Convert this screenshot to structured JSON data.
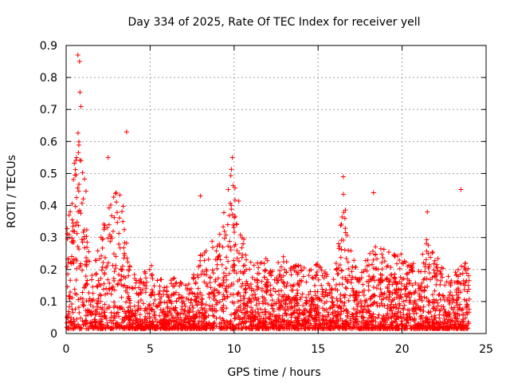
{
  "chart_data": {
    "type": "scatter",
    "title": "Day 334 of 2025, Rate Of TEC Index for receiver yell",
    "xlabel": "GPS time / hours",
    "ylabel": "ROTI / TECUs",
    "xlim": [
      0,
      25
    ],
    "ylim": [
      0,
      0.9
    ],
    "xticks": [
      0,
      5,
      10,
      15,
      20,
      25
    ],
    "yticks": [
      0,
      0.1,
      0.2,
      0.3,
      0.4,
      0.5,
      0.6,
      0.7,
      0.8,
      0.9
    ],
    "xtick_labels": [
      "0",
      "5",
      "10",
      "15",
      "20",
      "25"
    ],
    "ytick_labels": [
      "0",
      "0.1",
      "0.2",
      "0.3",
      "0.4",
      "0.5",
      "0.6",
      "0.7",
      "0.8",
      "0.9"
    ],
    "grid": true,
    "marker": "+",
    "color": "#ff0000",
    "series": [
      {
        "name": "ROTI",
        "envelope_x": [
          0,
          0.3,
          0.6,
          0.8,
          1.0,
          1.3,
          1.6,
          2.0,
          2.5,
          3.0,
          3.4,
          3.7,
          4.0,
          4.5,
          5.0,
          5.5,
          6.0,
          6.5,
          7.0,
          7.5,
          8.0,
          8.5,
          9.0,
          9.5,
          9.8,
          10.2,
          10.6,
          11.0,
          11.5,
          12.0,
          12.5,
          13.0,
          13.5,
          14.0,
          14.5,
          15.0,
          15.5,
          16.0,
          16.5,
          16.8,
          17.2,
          17.6,
          18.0,
          18.5,
          19.0,
          19.5,
          20.0,
          20.5,
          21.0,
          21.5,
          22.0,
          22.5,
          23.0,
          23.5,
          24.0
        ],
        "envelope_y": [
          0.3,
          0.45,
          0.6,
          0.82,
          0.6,
          0.35,
          0.22,
          0.28,
          0.45,
          0.5,
          0.4,
          0.25,
          0.2,
          0.18,
          0.22,
          0.2,
          0.16,
          0.18,
          0.15,
          0.17,
          0.25,
          0.28,
          0.32,
          0.4,
          0.52,
          0.45,
          0.3,
          0.24,
          0.22,
          0.24,
          0.22,
          0.25,
          0.22,
          0.22,
          0.2,
          0.22,
          0.2,
          0.18,
          0.45,
          0.3,
          0.22,
          0.2,
          0.25,
          0.28,
          0.27,
          0.25,
          0.26,
          0.24,
          0.22,
          0.3,
          0.25,
          0.2,
          0.18,
          0.22,
          0.22
        ],
        "outliers_x": [
          0.7,
          0.8,
          3.6,
          2.5,
          16.5,
          18.3,
          21.5,
          23.5,
          8.0,
          9.9
        ],
        "outliers_y": [
          0.87,
          0.85,
          0.63,
          0.55,
          0.49,
          0.44,
          0.38,
          0.45,
          0.43,
          0.55
        ]
      }
    ]
  }
}
